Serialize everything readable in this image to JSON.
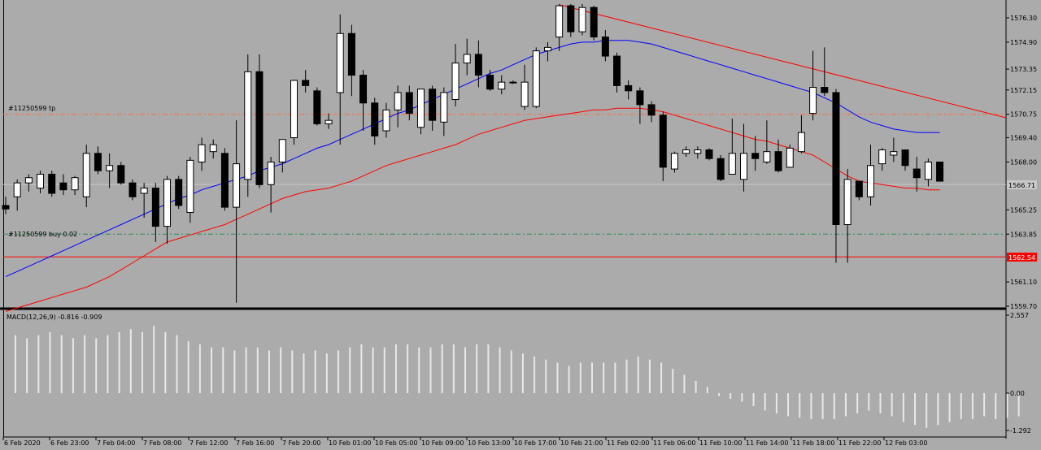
{
  "colors": {
    "background": "#ababab",
    "candle_up": "#ffffff",
    "candle_down": "#000000",
    "ma_fast": "#0000ff",
    "ma_slow": "#ff0000",
    "trendline": "#ff0000",
    "tp_line": "#ff6a3d",
    "buy_line": "#2e8b57",
    "sl_line": "#ff0000",
    "bid_line": "#c8c8c8",
    "macd_hist": "#e8e8e8"
  },
  "chart_data": [
    {
      "type": "candlestick",
      "ylim": [
        1559.7,
        1577.0
      ],
      "y_ticks": [
        "1576.30",
        "1574.90",
        "1573.35",
        "1572.15",
        "1570.75",
        "1569.40",
        "1568.00",
        "1566.71",
        "1565.25",
        "1563.85",
        "1562.54",
        "1561.10",
        "1559.70"
      ],
      "x_tick_labels": [
        "6 Feb 2020",
        "6 Feb 23:00",
        "7 Feb 04:00",
        "7 Feb 08:00",
        "7 Feb 12:00",
        "7 Feb 16:00",
        "7 Feb 20:00",
        "10 Feb 01:00",
        "10 Feb 05:00",
        "10 Feb 09:00",
        "10 Feb 13:00",
        "10 Feb 17:00",
        "10 Feb 21:00",
        "11 Feb 02:00",
        "11 Feb 06:00",
        "11 Feb 10:00",
        "11 Feb 14:00",
        "11 Feb 18:00",
        "11 Feb 22:00",
        "12 Feb 03:00"
      ],
      "current_price": "1566.71",
      "sl_price": "1562.54",
      "tp_label": "#11250599 tp",
      "tp_price": 1570.75,
      "buy_label": "#11250599 buy 0.02",
      "buy_price": 1563.85,
      "candles": [
        {
          "o": 1565.5,
          "h": 1566.0,
          "l": 1565.0,
          "c": 1565.3
        },
        {
          "o": 1566.0,
          "h": 1567.0,
          "l": 1565.2,
          "c": 1566.8
        },
        {
          "o": 1566.8,
          "h": 1567.3,
          "l": 1566.3,
          "c": 1567.1
        },
        {
          "o": 1566.5,
          "h": 1567.5,
          "l": 1566.2,
          "c": 1567.3
        },
        {
          "o": 1567.3,
          "h": 1567.5,
          "l": 1566.0,
          "c": 1566.2
        },
        {
          "o": 1566.8,
          "h": 1567.3,
          "l": 1566.1,
          "c": 1566.4
        },
        {
          "o": 1566.4,
          "h": 1567.2,
          "l": 1566.1,
          "c": 1567.1
        },
        {
          "o": 1566.0,
          "h": 1569.0,
          "l": 1565.4,
          "c": 1568.5
        },
        {
          "o": 1568.5,
          "h": 1568.9,
          "l": 1567.3,
          "c": 1567.5
        },
        {
          "o": 1567.5,
          "h": 1568.5,
          "l": 1566.5,
          "c": 1567.8
        },
        {
          "o": 1567.8,
          "h": 1568.0,
          "l": 1566.7,
          "c": 1566.8
        },
        {
          "o": 1566.8,
          "h": 1567.0,
          "l": 1565.8,
          "c": 1566.0
        },
        {
          "o": 1566.2,
          "h": 1566.8,
          "l": 1564.8,
          "c": 1566.5
        },
        {
          "o": 1566.5,
          "h": 1566.8,
          "l": 1563.4,
          "c": 1564.3
        },
        {
          "o": 1564.3,
          "h": 1567.2,
          "l": 1563.3,
          "c": 1567.0
        },
        {
          "o": 1567.0,
          "h": 1567.2,
          "l": 1565.3,
          "c": 1565.5
        },
        {
          "o": 1565.1,
          "h": 1568.3,
          "l": 1564.5,
          "c": 1568.1
        },
        {
          "o": 1568.0,
          "h": 1569.4,
          "l": 1567.5,
          "c": 1569.0
        },
        {
          "o": 1568.6,
          "h": 1569.3,
          "l": 1568.2,
          "c": 1569.0
        },
        {
          "o": 1568.5,
          "h": 1568.8,
          "l": 1565.2,
          "c": 1565.4
        },
        {
          "o": 1565.4,
          "h": 1570.4,
          "l": 1559.9,
          "c": 1567.9
        },
        {
          "o": 1567.0,
          "h": 1574.2,
          "l": 1566.0,
          "c": 1573.2
        },
        {
          "o": 1573.2,
          "h": 1574.2,
          "l": 1566.5,
          "c": 1566.7
        },
        {
          "o": 1566.7,
          "h": 1568.3,
          "l": 1565.1,
          "c": 1568.0
        },
        {
          "o": 1568.0,
          "h": 1569.3,
          "l": 1567.4,
          "c": 1569.3
        },
        {
          "o": 1569.4,
          "h": 1572.7,
          "l": 1569.0,
          "c": 1572.7
        },
        {
          "o": 1572.7,
          "h": 1573.3,
          "l": 1572.0,
          "c": 1572.4
        },
        {
          "o": 1572.1,
          "h": 1572.3,
          "l": 1570.1,
          "c": 1570.2
        },
        {
          "o": 1570.2,
          "h": 1570.8,
          "l": 1569.9,
          "c": 1570.4
        },
        {
          "o": 1572.0,
          "h": 1576.5,
          "l": 1569.0,
          "c": 1575.4
        },
        {
          "o": 1575.4,
          "h": 1575.9,
          "l": 1571.8,
          "c": 1573.0
        },
        {
          "o": 1573.0,
          "h": 1573.3,
          "l": 1569.8,
          "c": 1571.4
        },
        {
          "o": 1571.4,
          "h": 1571.7,
          "l": 1569.0,
          "c": 1569.5
        },
        {
          "o": 1569.8,
          "h": 1571.4,
          "l": 1569.4,
          "c": 1571.0
        },
        {
          "o": 1571.0,
          "h": 1572.4,
          "l": 1570.0,
          "c": 1572.0
        },
        {
          "o": 1572.0,
          "h": 1572.4,
          "l": 1570.4,
          "c": 1570.8
        },
        {
          "o": 1570.0,
          "h": 1572.2,
          "l": 1569.6,
          "c": 1572.2
        },
        {
          "o": 1572.2,
          "h": 1572.4,
          "l": 1569.8,
          "c": 1570.4
        },
        {
          "o": 1570.3,
          "h": 1572.3,
          "l": 1569.5,
          "c": 1572.0
        },
        {
          "o": 1571.6,
          "h": 1574.8,
          "l": 1571.2,
          "c": 1573.7
        },
        {
          "o": 1573.7,
          "h": 1575.1,
          "l": 1573.0,
          "c": 1574.2
        },
        {
          "o": 1574.2,
          "h": 1575.0,
          "l": 1572.3,
          "c": 1573.0
        },
        {
          "o": 1573.0,
          "h": 1573.3,
          "l": 1572.1,
          "c": 1572.2
        },
        {
          "o": 1572.2,
          "h": 1573.0,
          "l": 1571.9,
          "c": 1572.6
        },
        {
          "o": 1572.6,
          "h": 1572.7,
          "l": 1572.5,
          "c": 1572.6
        },
        {
          "o": 1571.2,
          "h": 1573.6,
          "l": 1571.0,
          "c": 1572.6
        },
        {
          "o": 1571.2,
          "h": 1574.6,
          "l": 1571.1,
          "c": 1574.4
        },
        {
          "o": 1574.4,
          "h": 1574.9,
          "l": 1573.8,
          "c": 1574.6
        },
        {
          "o": 1575.2,
          "h": 1577.1,
          "l": 1574.4,
          "c": 1577.0
        },
        {
          "o": 1577.0,
          "h": 1577.1,
          "l": 1575.2,
          "c": 1575.5
        },
        {
          "o": 1575.5,
          "h": 1577.1,
          "l": 1575.3,
          "c": 1576.9
        },
        {
          "o": 1576.9,
          "h": 1577.0,
          "l": 1575.0,
          "c": 1575.2
        },
        {
          "o": 1575.2,
          "h": 1575.6,
          "l": 1573.8,
          "c": 1574.1
        },
        {
          "o": 1574.1,
          "h": 1574.3,
          "l": 1572.0,
          "c": 1572.4
        },
        {
          "o": 1572.4,
          "h": 1572.7,
          "l": 1571.6,
          "c": 1572.1
        },
        {
          "o": 1572.1,
          "h": 1572.3,
          "l": 1570.2,
          "c": 1571.3
        },
        {
          "o": 1571.3,
          "h": 1571.5,
          "l": 1570.3,
          "c": 1570.7
        },
        {
          "o": 1570.7,
          "h": 1570.9,
          "l": 1566.9,
          "c": 1567.7
        },
        {
          "o": 1567.6,
          "h": 1568.6,
          "l": 1567.4,
          "c": 1568.5
        },
        {
          "o": 1568.5,
          "h": 1568.9,
          "l": 1568.3,
          "c": 1568.7
        },
        {
          "o": 1568.5,
          "h": 1568.9,
          "l": 1568.2,
          "c": 1568.7
        },
        {
          "o": 1568.7,
          "h": 1568.8,
          "l": 1568.1,
          "c": 1568.2
        },
        {
          "o": 1568.2,
          "h": 1568.4,
          "l": 1566.9,
          "c": 1567.0
        },
        {
          "o": 1567.3,
          "h": 1570.5,
          "l": 1567.3,
          "c": 1568.5
        },
        {
          "o": 1567.0,
          "h": 1570.2,
          "l": 1566.3,
          "c": 1568.5
        },
        {
          "o": 1568.5,
          "h": 1569.5,
          "l": 1567.5,
          "c": 1568.2
        },
        {
          "o": 1568.0,
          "h": 1570.4,
          "l": 1567.9,
          "c": 1568.6
        },
        {
          "o": 1568.6,
          "h": 1569.3,
          "l": 1567.4,
          "c": 1567.5
        },
        {
          "o": 1567.7,
          "h": 1569.0,
          "l": 1567.7,
          "c": 1568.8
        },
        {
          "o": 1568.6,
          "h": 1570.7,
          "l": 1568.5,
          "c": 1569.7
        },
        {
          "o": 1570.8,
          "h": 1574.4,
          "l": 1570.4,
          "c": 1572.3
        },
        {
          "o": 1572.3,
          "h": 1574.6,
          "l": 1571.8,
          "c": 1572.0
        },
        {
          "o": 1572.0,
          "h": 1572.2,
          "l": 1562.2,
          "c": 1564.4
        },
        {
          "o": 1564.4,
          "h": 1567.6,
          "l": 1562.2,
          "c": 1567.0
        },
        {
          "o": 1566.9,
          "h": 1566.9,
          "l": 1565.8,
          "c": 1566.0
        },
        {
          "o": 1566.0,
          "h": 1569.0,
          "l": 1565.5,
          "c": 1567.8
        },
        {
          "o": 1567.9,
          "h": 1568.8,
          "l": 1567.5,
          "c": 1568.7
        },
        {
          "o": 1568.4,
          "h": 1569.4,
          "l": 1568.0,
          "c": 1568.6
        },
        {
          "o": 1568.7,
          "h": 1568.7,
          "l": 1567.5,
          "c": 1567.8
        },
        {
          "o": 1567.6,
          "h": 1568.3,
          "l": 1566.3,
          "c": 1567.1
        },
        {
          "o": 1567.0,
          "h": 1568.2,
          "l": 1566.6,
          "c": 1568.0
        },
        {
          "o": 1568.0,
          "h": 1568.0,
          "l": 1566.9,
          "c": 1566.9
        }
      ],
      "ma_fast": [
        1561.4,
        1561.7,
        1562.0,
        1562.3,
        1562.6,
        1562.9,
        1563.2,
        1563.5,
        1563.8,
        1564.1,
        1564.4,
        1564.7,
        1565.0,
        1565.3,
        1565.6,
        1565.9,
        1566.1,
        1566.4,
        1566.6,
        1566.8,
        1567.0,
        1567.2,
        1567.5,
        1567.7,
        1567.9,
        1568.2,
        1568.5,
        1568.8,
        1569.0,
        1569.3,
        1569.6,
        1569.9,
        1570.2,
        1570.5,
        1570.8,
        1571.0,
        1571.3,
        1571.6,
        1571.9,
        1572.2,
        1572.5,
        1572.8,
        1573.1,
        1573.3,
        1573.6,
        1573.9,
        1574.2,
        1574.4,
        1574.6,
        1574.8,
        1574.9,
        1574.9,
        1575.0,
        1575.0,
        1575.0,
        1574.9,
        1574.8,
        1574.6,
        1574.4,
        1574.2,
        1574.0,
        1573.8,
        1573.6,
        1573.4,
        1573.2,
        1573.0,
        1572.8,
        1572.6,
        1572.4,
        1572.2,
        1572.0,
        1571.7,
        1571.4,
        1571.0,
        1570.6,
        1570.3,
        1570.1,
        1569.9,
        1569.8,
        1569.7,
        1569.7,
        1569.7
      ],
      "ma_slow": [
        1559.4,
        1559.6,
        1559.8,
        1560.0,
        1560.2,
        1560.4,
        1560.6,
        1560.8,
        1561.1,
        1561.4,
        1561.8,
        1562.2,
        1562.6,
        1563.0,
        1563.4,
        1563.6,
        1563.8,
        1564.0,
        1564.2,
        1564.4,
        1564.7,
        1565.0,
        1565.3,
        1565.6,
        1565.9,
        1566.1,
        1566.3,
        1566.4,
        1566.5,
        1566.7,
        1566.9,
        1567.2,
        1567.5,
        1567.8,
        1568.0,
        1568.2,
        1568.4,
        1568.6,
        1568.8,
        1569.0,
        1569.3,
        1569.6,
        1569.8,
        1570.0,
        1570.2,
        1570.4,
        1570.5,
        1570.6,
        1570.7,
        1570.8,
        1570.9,
        1571.0,
        1571.0,
        1571.1,
        1571.1,
        1571.1,
        1571.0,
        1570.9,
        1570.7,
        1570.5,
        1570.3,
        1570.1,
        1569.9,
        1569.7,
        1569.5,
        1569.3,
        1569.2,
        1569.0,
        1568.8,
        1568.6,
        1568.4,
        1568.0,
        1567.6,
        1567.2,
        1566.9,
        1566.8,
        1566.7,
        1566.6,
        1566.5,
        1566.5,
        1566.4,
        1566.4
      ]
    },
    {
      "type": "bar",
      "title": "MACD(12,26,9) -0.816 -0.909",
      "ylim": [
        -1.292,
        2.557
      ],
      "y_ticks": [
        "2.557",
        "0.00",
        "-1.292"
      ],
      "values": [
        1.9,
        1.8,
        1.9,
        2.0,
        1.9,
        1.8,
        1.9,
        1.8,
        1.9,
        2.0,
        2.1,
        2.0,
        2.2,
        2.0,
        1.9,
        1.7,
        1.6,
        1.5,
        1.5,
        1.4,
        1.5,
        1.5,
        1.4,
        1.5,
        1.4,
        1.3,
        1.4,
        1.3,
        1.4,
        1.5,
        1.6,
        1.5,
        1.5,
        1.6,
        1.6,
        1.5,
        1.5,
        1.6,
        1.6,
        1.5,
        1.6,
        1.6,
        1.5,
        1.4,
        1.3,
        1.2,
        1.1,
        1.0,
        0.9,
        1.0,
        1.0,
        1.0,
        1.0,
        1.1,
        1.2,
        1.1,
        1.0,
        0.8,
        0.6,
        0.4,
        0.2,
        -0.1,
        -0.2,
        -0.3,
        -0.45,
        -0.6,
        -0.7,
        -0.8,
        -0.85,
        -0.9,
        -0.9,
        -0.9,
        -0.8,
        -0.7,
        -0.6,
        -0.7,
        -0.8,
        -1.0,
        -1.1,
        -1.2,
        -1.1,
        -1.0,
        -0.9,
        -0.9,
        -0.8,
        -0.9,
        -0.85,
        -0.8
      ]
    }
  ]
}
